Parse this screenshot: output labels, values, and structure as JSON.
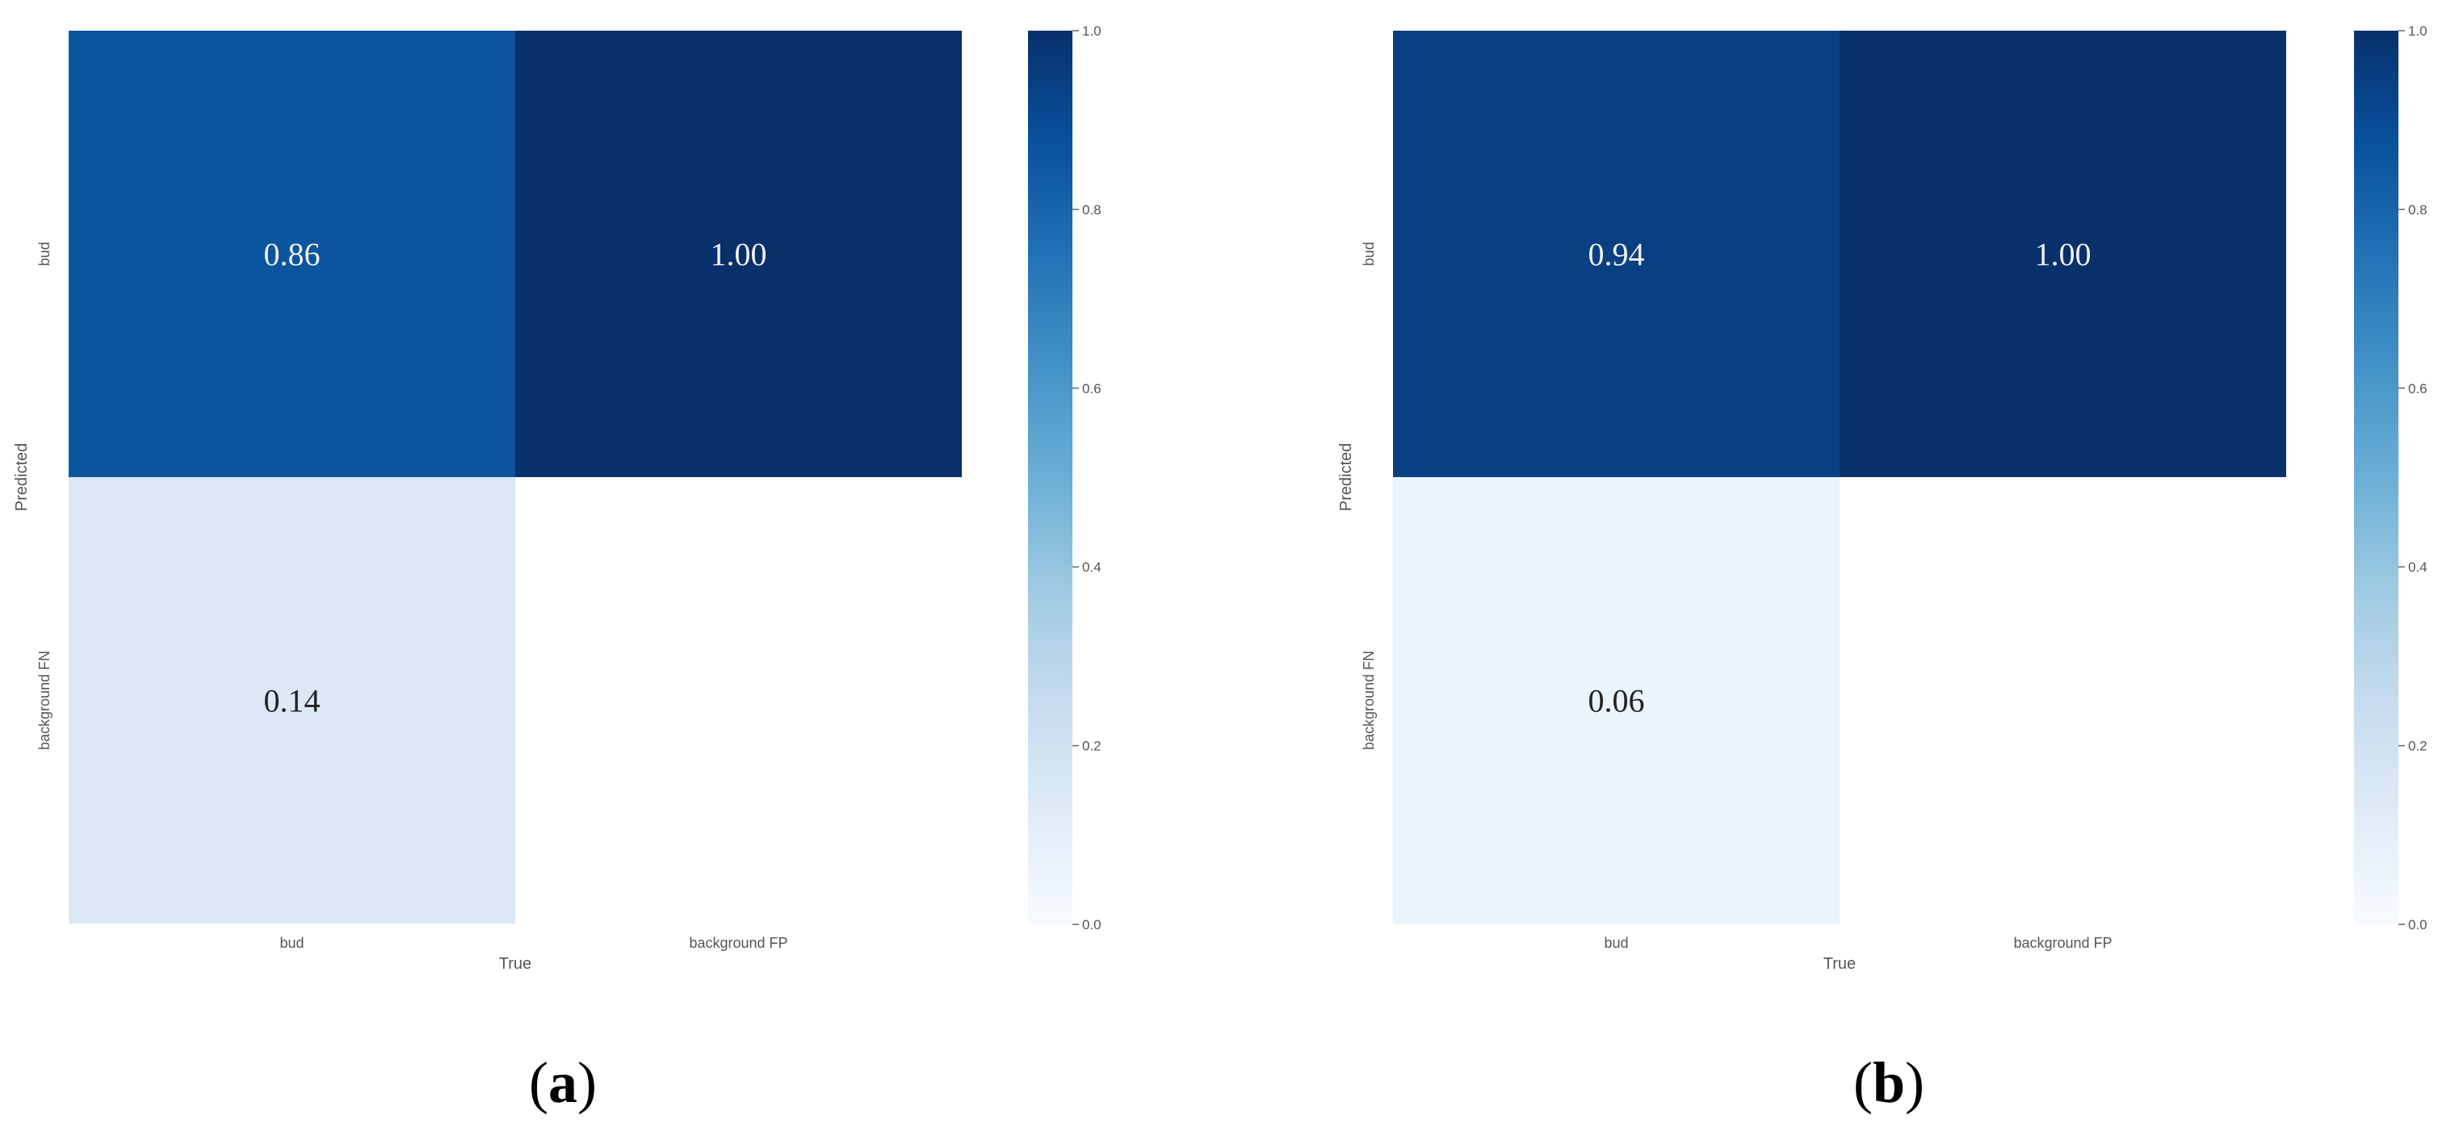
{
  "chart_data": [
    {
      "type": "heatmap",
      "panel_label": "a",
      "xlabel": "True",
      "ylabel": "Predicted",
      "x_categories": [
        "bud",
        "background FP"
      ],
      "y_categories": [
        "bud",
        "background FN"
      ],
      "values": [
        [
          0.86,
          1.0
        ],
        [
          0.14,
          null
        ]
      ],
      "value_labels": [
        [
          "0.86",
          "1.00"
        ],
        [
          "0.14",
          ""
        ]
      ],
      "colormap": "Blues",
      "colorbar": {
        "range": [
          0.0,
          1.0
        ],
        "ticks": [
          "0.0",
          "0.2",
          "0.4",
          "0.6",
          "0.8",
          "1.0"
        ]
      }
    },
    {
      "type": "heatmap",
      "panel_label": "b",
      "xlabel": "True",
      "ylabel": "Predicted",
      "x_categories": [
        "bud",
        "background FP"
      ],
      "y_categories": [
        "bud",
        "background FN"
      ],
      "values": [
        [
          0.94,
          1.0
        ],
        [
          0.06,
          null
        ]
      ],
      "value_labels": [
        [
          "0.94",
          "1.00"
        ],
        [
          "0.06",
          ""
        ]
      ],
      "colormap": "Blues",
      "colorbar": {
        "range": [
          0.0,
          1.0
        ],
        "ticks": [
          "0.0",
          "0.2",
          "0.4",
          "0.6",
          "0.8",
          "1.0"
        ]
      }
    }
  ]
}
